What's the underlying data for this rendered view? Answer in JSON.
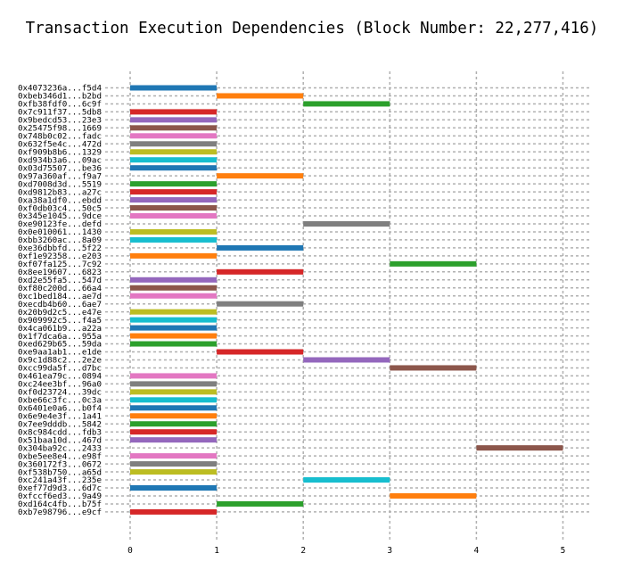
{
  "chart_data": {
    "type": "bar",
    "orientation": "horizontal-gantt",
    "title": "Transaction Execution Dependencies (Block Number: 22,277,416)",
    "xlabel": "",
    "ylabel": "",
    "xlim": [
      0,
      5.2
    ],
    "x_ticks": [
      0,
      1,
      2,
      3,
      4,
      5
    ],
    "grid": true,
    "colors": [
      "#1f77b4",
      "#ff7f0e",
      "#2ca02c",
      "#d62728",
      "#9467bd",
      "#8c564b",
      "#e377c2",
      "#7f7f7f",
      "#bcbd22",
      "#17becf"
    ],
    "transactions": [
      {
        "label": "0x4073236a...f5d4",
        "start": 0,
        "end": 1
      },
      {
        "label": "0xbeb346d1...b2bd",
        "start": 1,
        "end": 2
      },
      {
        "label": "0xfb38fdf0...6c9f",
        "start": 2,
        "end": 3
      },
      {
        "label": "0x7c911f37...5db8",
        "start": 0,
        "end": 1
      },
      {
        "label": "0x9bedcd53...23e3",
        "start": 0,
        "end": 1
      },
      {
        "label": "0x25475f98...1669",
        "start": 0,
        "end": 1
      },
      {
        "label": "0x748b0c02...fadc",
        "start": 0,
        "end": 1
      },
      {
        "label": "0x632f5e4c...472d",
        "start": 0,
        "end": 1
      },
      {
        "label": "0xf909b8b6...1329",
        "start": 0,
        "end": 1
      },
      {
        "label": "0xd934b3a6...09ac",
        "start": 0,
        "end": 1
      },
      {
        "label": "0x03d75507...be36",
        "start": 0,
        "end": 1
      },
      {
        "label": "0x97a360af...f9a7",
        "start": 1,
        "end": 2
      },
      {
        "label": "0xd7008d3d...5519",
        "start": 0,
        "end": 1
      },
      {
        "label": "0xd9812b83...a27c",
        "start": 0,
        "end": 1
      },
      {
        "label": "0xa38a1df0...ebdd",
        "start": 0,
        "end": 1
      },
      {
        "label": "0xf0db03c4...50c5",
        "start": 0,
        "end": 1
      },
      {
        "label": "0x345e1045...9dce",
        "start": 0,
        "end": 1
      },
      {
        "label": "0xe90123fe...defd",
        "start": 2,
        "end": 3
      },
      {
        "label": "0x0e010061...1430",
        "start": 0,
        "end": 1
      },
      {
        "label": "0xbb3260ac...8a09",
        "start": 0,
        "end": 1
      },
      {
        "label": "0xe36dbbfd...5f22",
        "start": 1,
        "end": 2
      },
      {
        "label": "0xf1e92358...e203",
        "start": 0,
        "end": 1
      },
      {
        "label": "0xf07fa125...7c92",
        "start": 3,
        "end": 4
      },
      {
        "label": "0x8ee19607...6823",
        "start": 1,
        "end": 2
      },
      {
        "label": "0xd2e55fa5...547d",
        "start": 0,
        "end": 1
      },
      {
        "label": "0xf80c200d...66a4",
        "start": 0,
        "end": 1
      },
      {
        "label": "0xc1bed184...ae7d",
        "start": 0,
        "end": 1
      },
      {
        "label": "0xecdb4b60...6ae7",
        "start": 1,
        "end": 2
      },
      {
        "label": "0x20b9d2c5...e47e",
        "start": 0,
        "end": 1
      },
      {
        "label": "0x909992c5...f4a5",
        "start": 0,
        "end": 1
      },
      {
        "label": "0x4ca061b9...a22a",
        "start": 0,
        "end": 1
      },
      {
        "label": "0x1f7dca6a...955a",
        "start": 0,
        "end": 1
      },
      {
        "label": "0xed629b65...59da",
        "start": 0,
        "end": 1
      },
      {
        "label": "0xe9aa1ab1...e1de",
        "start": 1,
        "end": 2
      },
      {
        "label": "0x9c1d88c2...2e2e",
        "start": 2,
        "end": 3
      },
      {
        "label": "0xcc99da5f...d7bc",
        "start": 3,
        "end": 4
      },
      {
        "label": "0x461ea79c...0894",
        "start": 0,
        "end": 1
      },
      {
        "label": "0xc24ee3bf...96a0",
        "start": 0,
        "end": 1
      },
      {
        "label": "0xf0d23724...39dc",
        "start": 0,
        "end": 1
      },
      {
        "label": "0xbe66c3fc...0c3a",
        "start": 0,
        "end": 1
      },
      {
        "label": "0x6401e0a6...b0f4",
        "start": 0,
        "end": 1
      },
      {
        "label": "0x6e9e4e3f...1a41",
        "start": 0,
        "end": 1
      },
      {
        "label": "0x7ee9dddb...5842",
        "start": 0,
        "end": 1
      },
      {
        "label": "0x8c984cdd...fdb3",
        "start": 0,
        "end": 1
      },
      {
        "label": "0x51baa10d...467d",
        "start": 0,
        "end": 1
      },
      {
        "label": "0x304ba92c...2433",
        "start": 4,
        "end": 5
      },
      {
        "label": "0xbe5ee8e4...e98f",
        "start": 0,
        "end": 1
      },
      {
        "label": "0x360172f3...0672",
        "start": 0,
        "end": 1
      },
      {
        "label": "0xf538b750...a65d",
        "start": 0,
        "end": 1
      },
      {
        "label": "0xc241a43f...235e",
        "start": 2,
        "end": 3
      },
      {
        "label": "0xef77d9d3...6d7c",
        "start": 0,
        "end": 1
      },
      {
        "label": "0xfccf6ed3...9a49",
        "start": 3,
        "end": 4
      },
      {
        "label": "0xd164c4fb...b75f",
        "start": 1,
        "end": 2
      },
      {
        "label": "0xb7e98796...e9cf",
        "start": 0,
        "end": 1
      }
    ]
  }
}
